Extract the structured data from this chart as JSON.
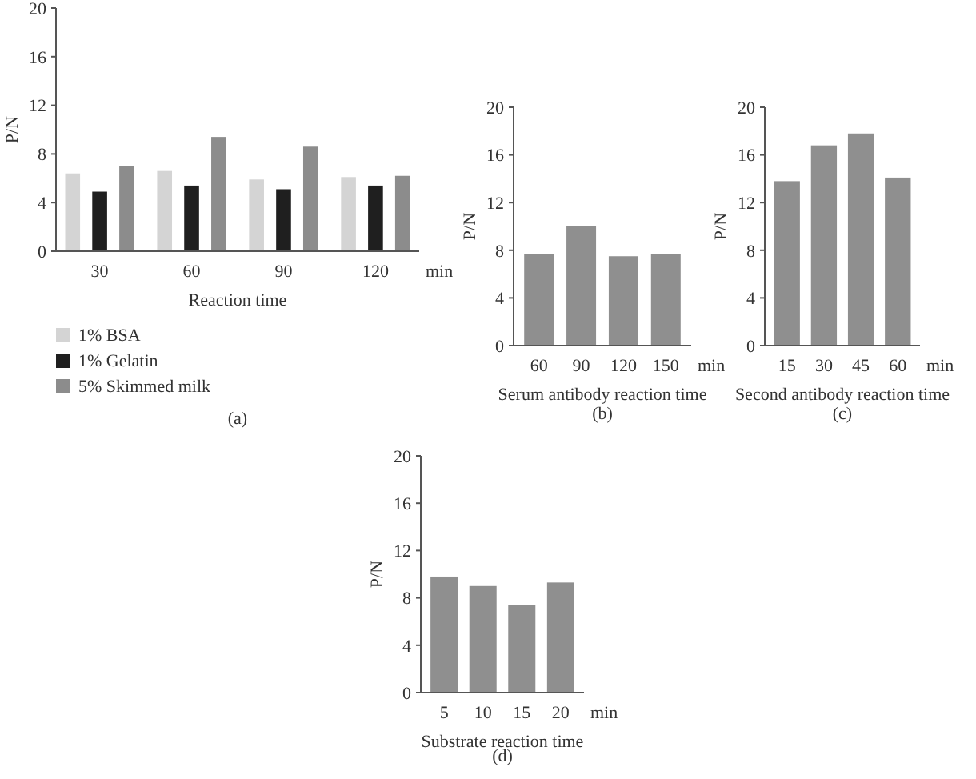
{
  "chart_data": [
    {
      "type": "bar",
      "xlabel": "Reaction time",
      "ylabel": "P/N",
      "categories": [
        "30",
        "60",
        "90",
        "120"
      ],
      "series": [
        {
          "name": "1% BSA",
          "color": "#d4d4d4",
          "values": [
            6.4,
            6.6,
            5.9,
            6.1
          ]
        },
        {
          "name": "1% Gelatin",
          "color": "#1f1f1f",
          "values": [
            4.9,
            5.4,
            5.1,
            5.4
          ]
        },
        {
          "name": "5% Skimmed milk",
          "color": "#8c8c8c",
          "values": [
            7.0,
            9.4,
            8.6,
            6.2
          ]
        }
      ],
      "ylim": [
        0,
        20
      ],
      "yticks": [
        0,
        4,
        8,
        12,
        16,
        20
      ],
      "legend": "bottom left",
      "annotations": [
        "min",
        "(a)"
      ]
    },
    {
      "type": "bar",
      "xlabel": "Serum antibody reaction time",
      "ylabel": "P/N",
      "categories": [
        "60",
        "90",
        "120",
        "150"
      ],
      "series": [
        {
          "color": "#8f8f8f",
          "values": [
            7.7,
            10.0,
            7.5,
            7.7
          ]
        }
      ],
      "ylim": [
        0,
        20
      ],
      "yticks": [
        0,
        4,
        8,
        12,
        16,
        20
      ],
      "annotations": [
        "min",
        "(b)"
      ]
    },
    {
      "type": "bar",
      "xlabel": "Second antibody reaction time",
      "ylabel": "P/N",
      "categories": [
        "15",
        "30",
        "45",
        "60"
      ],
      "series": [
        {
          "color": "#8f8f8f",
          "values": [
            13.8,
            16.8,
            17.8,
            14.1
          ]
        }
      ],
      "ylim": [
        0,
        20
      ],
      "yticks": [
        0,
        4,
        8,
        12,
        16,
        20
      ],
      "annotations": [
        "min",
        "(c)"
      ]
    },
    {
      "type": "bar",
      "xlabel": "Substrate reaction time",
      "ylabel": "P/N",
      "categories": [
        "5",
        "10",
        "15",
        "20"
      ],
      "series": [
        {
          "color": "#8f8f8f",
          "values": [
            9.8,
            9.0,
            7.4,
            9.3
          ]
        }
      ],
      "ylim": [
        0,
        20
      ],
      "yticks": [
        0,
        4,
        8,
        12,
        16,
        20
      ],
      "annotations": [
        "min",
        "(d)"
      ]
    }
  ]
}
